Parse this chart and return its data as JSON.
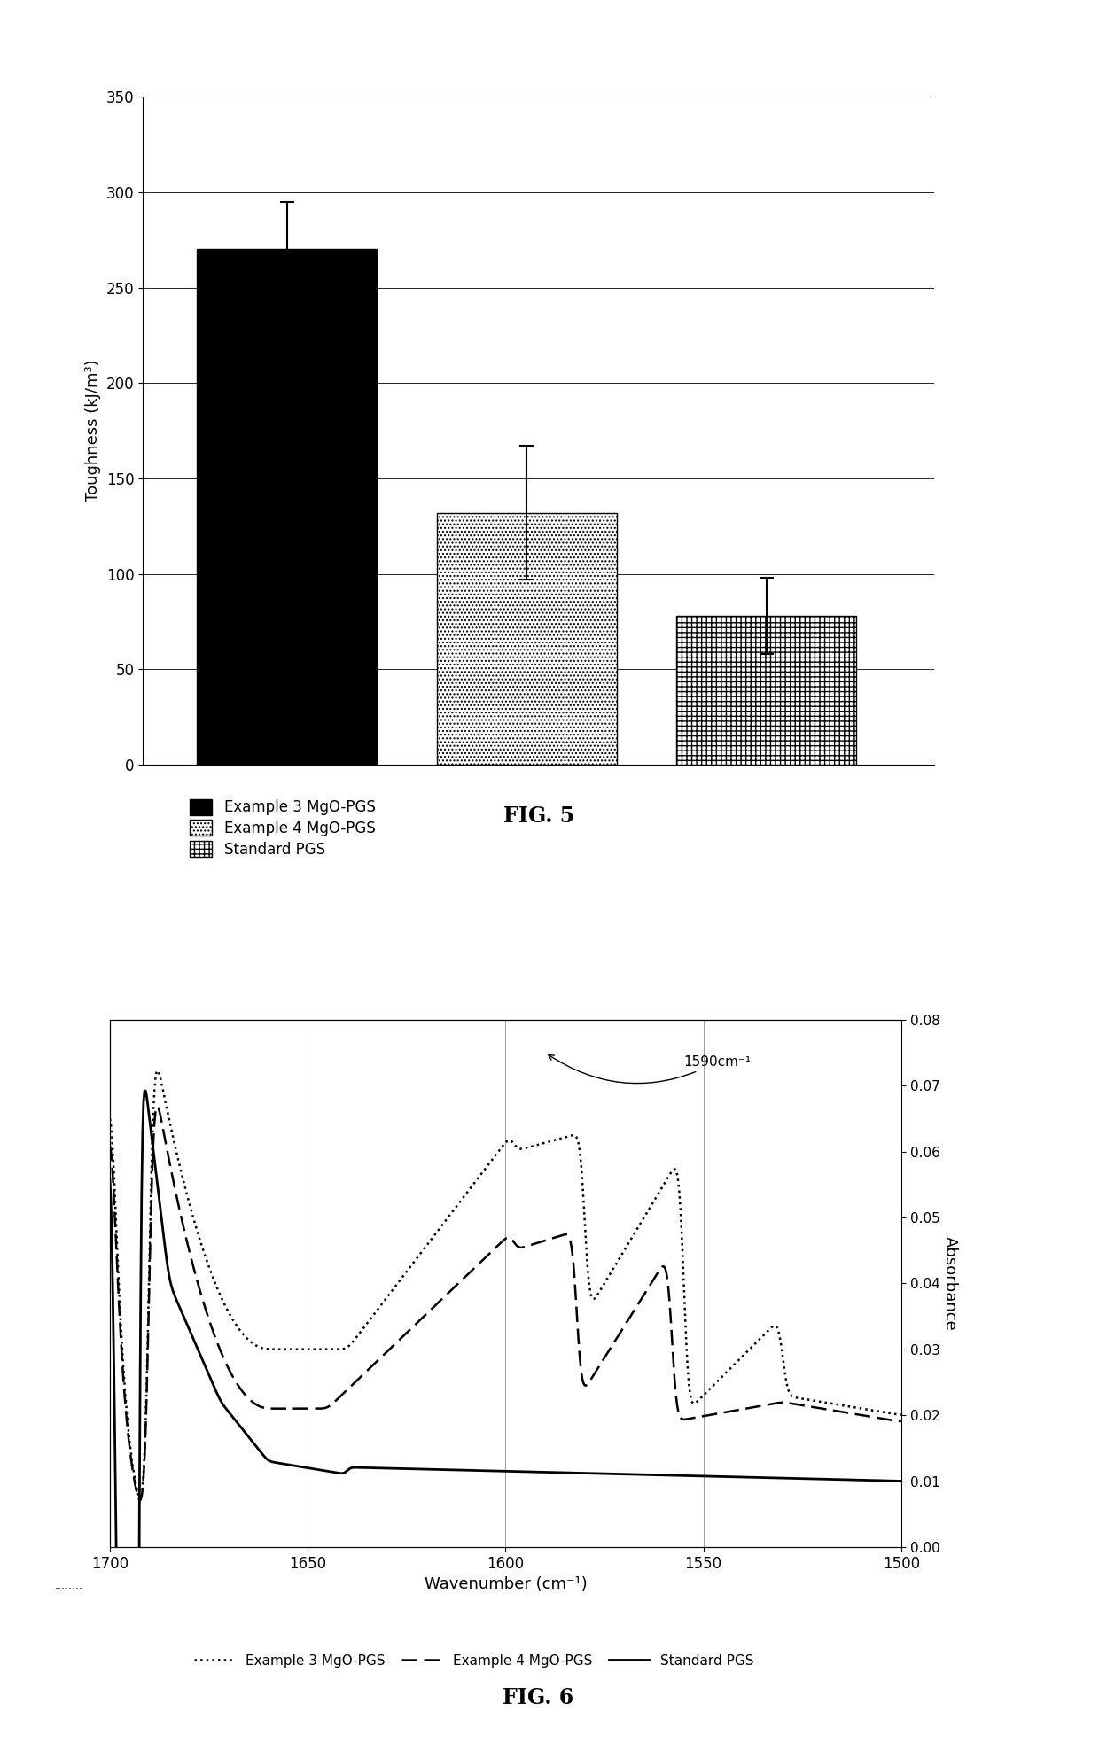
{
  "fig5": {
    "values": [
      270,
      132,
      78
    ],
    "errors": [
      25,
      35,
      20
    ],
    "ylabel": "Toughness (kJ/m³)",
    "ylim": [
      0,
      350
    ],
    "yticks": [
      0,
      50,
      100,
      150,
      200,
      250,
      300,
      350
    ],
    "title": "FIG. 5",
    "legend_labels": [
      "Example 3 MgO-PGS",
      "Example 4 MgO-PGS",
      "Standard PGS"
    ]
  },
  "fig6": {
    "title": "FIG. 6",
    "xlabel": "Wavenumber (cm⁻¹)",
    "ylabel": "Absorbance",
    "xlim": [
      1700,
      1500
    ],
    "ylim": [
      0,
      0.08
    ],
    "yticks": [
      0,
      0.01,
      0.02,
      0.03,
      0.04,
      0.05,
      0.06,
      0.07,
      0.08
    ],
    "xticks": [
      1700,
      1650,
      1600,
      1550,
      1500
    ],
    "annotation": "1590cm⁻¹",
    "legend_labels": [
      "Example 3 MgO-PGS",
      "Example 4 MgO-PGS",
      "Standard PGS"
    ]
  }
}
